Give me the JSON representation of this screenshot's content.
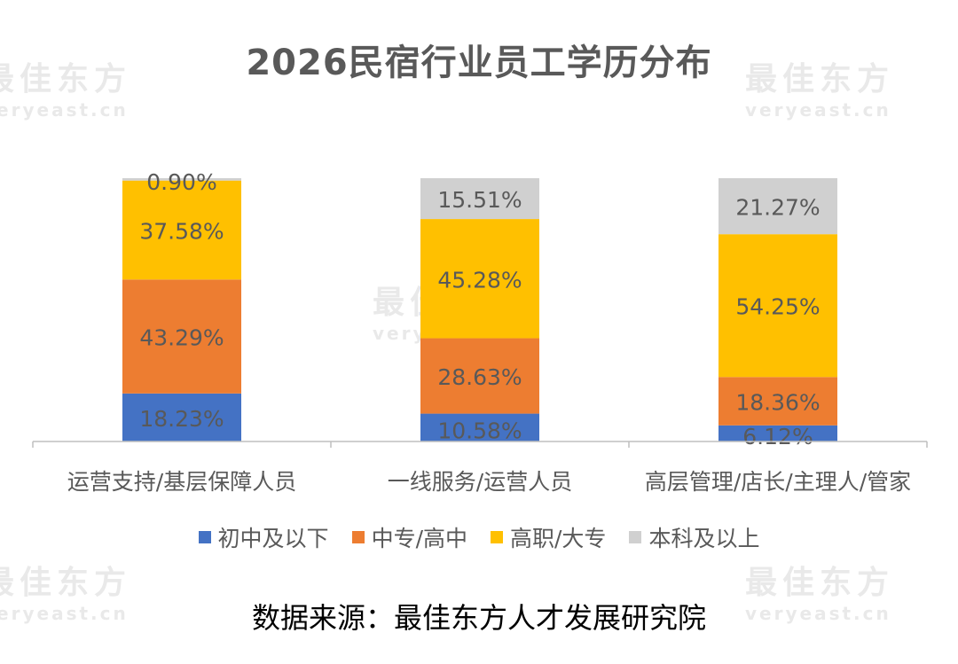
{
  "watermark": {
    "cn": "最佳东方",
    "en": "veryeast.cn"
  },
  "source_note": "数据来源：最佳东方人才发展研究院",
  "colors": {
    "初中及以下": "#4472C4",
    "中专/高中": "#ED7D31",
    "高职/大专": "#FFC000",
    "本科及以上": "#D0D0D0",
    "label_text": "#595959"
  },
  "chart_data": {
    "type": "bar",
    "stacked": true,
    "title": "2026民宿行业员工学历分布",
    "categories": [
      "运营支持/基层保障人员",
      "一线服务/运营人员",
      "高层管理/店长/主理人/管家"
    ],
    "series": [
      {
        "name": "初中及以下",
        "values": [
          18.23,
          10.58,
          6.12
        ],
        "labels": [
          "18.23%",
          "10.58%",
          "6.12%"
        ]
      },
      {
        "name": "中专/高中",
        "values": [
          43.29,
          28.63,
          18.36
        ],
        "labels": [
          "43.29%",
          "28.63%",
          "18.36%"
        ]
      },
      {
        "name": "高职/大专",
        "values": [
          37.58,
          45.28,
          54.25
        ],
        "labels": [
          "37.58%",
          "45.28%",
          "54.25%"
        ]
      },
      {
        "name": "本科及以上",
        "values": [
          0.9,
          15.51,
          21.27
        ],
        "labels": [
          "0.90%",
          "15.51%",
          "21.27%"
        ]
      }
    ],
    "ylim": [
      0,
      100
    ],
    "grid": false,
    "legend_position": "bottom"
  }
}
